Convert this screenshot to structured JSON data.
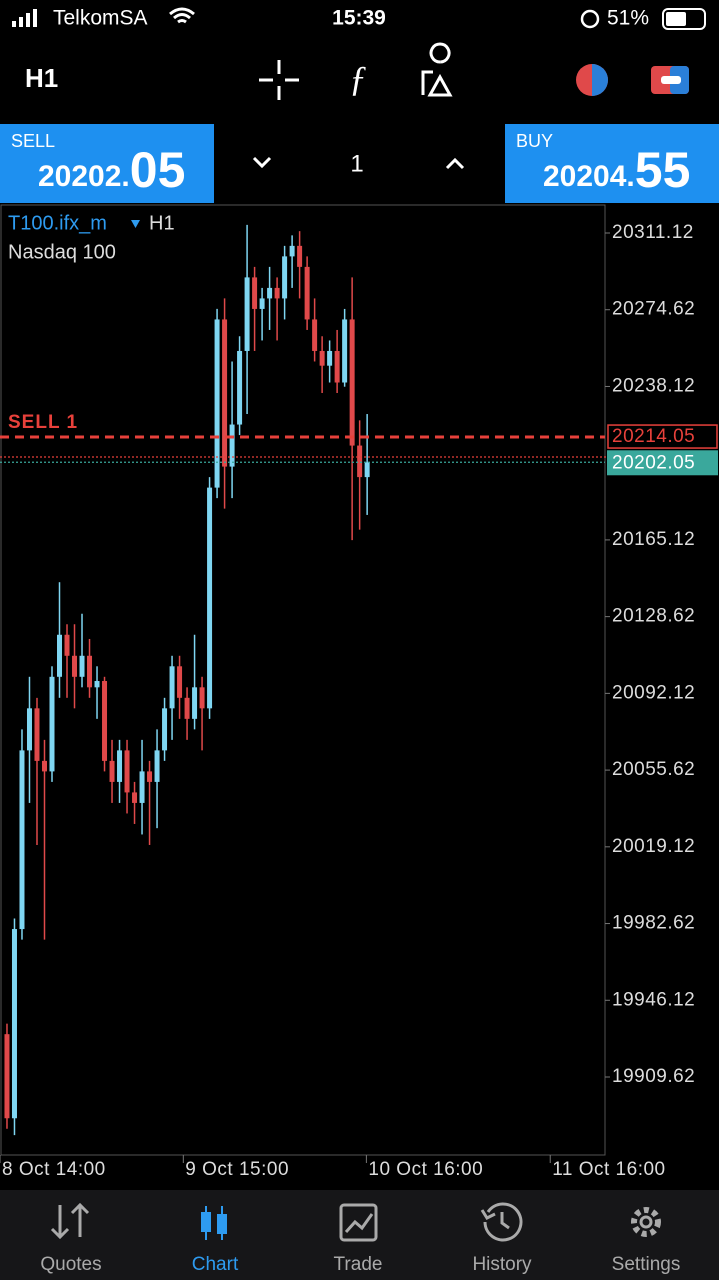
{
  "status_bar": {
    "carrier": "TelkomSA",
    "time": "15:39",
    "battery": "51%"
  },
  "toolbar": {
    "timeframe": "H1"
  },
  "trade_panel": {
    "sell_label": "SELL",
    "sell_price_main": "20202.",
    "sell_price_pips": "05",
    "volume": "1",
    "buy_label": "BUY",
    "buy_price_main": "20204.",
    "buy_price_pips": "55"
  },
  "chart_data": {
    "type": "candlestick",
    "symbol": "T100.ifx_m",
    "timeframe": "H1",
    "description": "Nasdaq 100",
    "up_color": "#7fd6f2",
    "down_color": "#e0494a",
    "open": [
      19930,
      19890,
      19980,
      20065,
      20085,
      20060,
      20055,
      20100,
      20120,
      20110,
      20100,
      20110,
      20095,
      20098,
      20060,
      20050,
      20065,
      20045,
      20040,
      20055,
      20050,
      20065,
      20085,
      20105,
      20090,
      20080,
      20095,
      20085,
      20190,
      20270,
      20200,
      20220,
      20255,
      20290,
      20275,
      20280,
      20285,
      20280,
      20300,
      20305,
      20295,
      20270,
      20255,
      20248,
      20255,
      20240,
      20270,
      20210,
      20195
    ],
    "high": [
      19935,
      19985,
      20075,
      20100,
      20090,
      20070,
      20105,
      20145,
      20125,
      20125,
      20130,
      20118,
      20105,
      20100,
      20070,
      20070,
      20070,
      20050,
      20070,
      20060,
      20075,
      20090,
      20110,
      20110,
      20095,
      20120,
      20100,
      20195,
      20275,
      20280,
      20250,
      20262,
      20315,
      20295,
      20285,
      20295,
      20290,
      20305,
      20310,
      20312,
      20300,
      20280,
      20262,
      20260,
      20265,
      20275,
      20290,
      20222,
      20225
    ],
    "low": [
      19885,
      19882,
      19975,
      20040,
      20020,
      19975,
      20050,
      20090,
      20090,
      20085,
      20095,
      20090,
      20080,
      20055,
      20040,
      20040,
      20035,
      20030,
      20025,
      20020,
      20028,
      20060,
      20070,
      20080,
      20070,
      20075,
      20065,
      20080,
      20185,
      20180,
      20185,
      20215,
      20225,
      20255,
      20260,
      20265,
      20260,
      20270,
      20285,
      20280,
      20265,
      20250,
      20235,
      20240,
      20235,
      20238,
      20165,
      20170,
      20177
    ],
    "close": [
      19890,
      19980,
      20065,
      20085,
      20060,
      20055,
      20100,
      20120,
      20110,
      20100,
      20110,
      20095,
      20098,
      20060,
      20050,
      20065,
      20045,
      20040,
      20055,
      20050,
      20065,
      20085,
      20105,
      20090,
      20080,
      20095,
      20085,
      20190,
      20270,
      20200,
      20220,
      20255,
      20290,
      20275,
      20280,
      20285,
      20280,
      20300,
      20305,
      20295,
      20270,
      20255,
      20248,
      20255,
      20240,
      20270,
      20210,
      20195,
      20202
    ],
    "xlim": [
      -0.93,
      79.7
    ],
    "xticks": [
      {
        "value": -0.93,
        "label": "8 Oct 14:00"
      },
      {
        "value": 23.5,
        "label": "9 Oct 15:00"
      },
      {
        "value": 47.9,
        "label": "10 Oct 16:00"
      },
      {
        "value": 72.4,
        "label": "11 Oct 16:00"
      }
    ],
    "ylim": [
      19872.52,
      20324.44
    ],
    "yticks": [
      20311.12,
      20274.62,
      20238.12,
      20165.12,
      20128.62,
      20092.12,
      20055.62,
      20019.12,
      19982.62,
      19946.12,
      19909.62
    ],
    "order_line": {
      "label": "SELL 1",
      "value": 20214.05,
      "color": "#e8413b"
    },
    "bid_line": {
      "value": 20202.05,
      "color": "#3aa89c"
    },
    "ask_line": {
      "value": 20204.55,
      "color": "#e8413b"
    }
  },
  "tab_bar": {
    "tabs": [
      "Quotes",
      "Chart",
      "Trade",
      "History",
      "Settings"
    ],
    "active": 1
  }
}
